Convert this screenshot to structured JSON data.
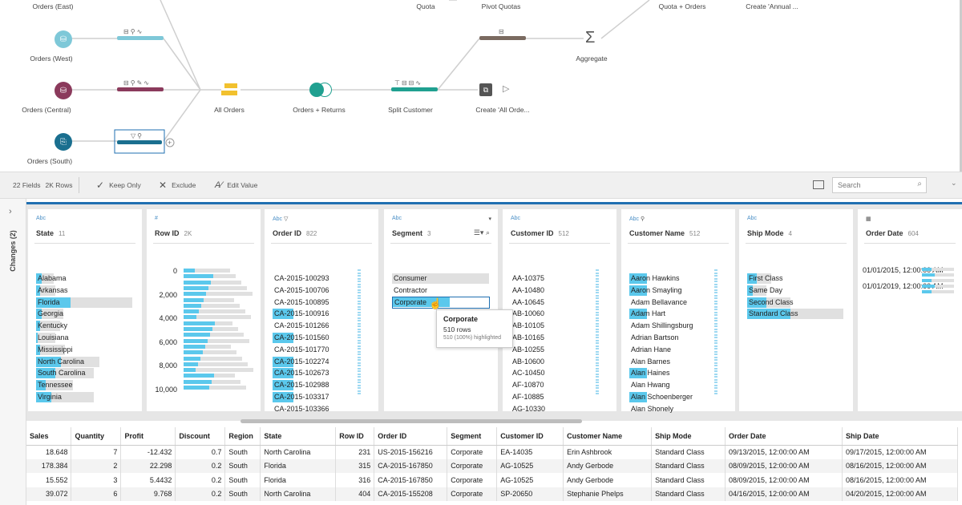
{
  "flow": {
    "nodes": [
      {
        "label": "Orders (East)"
      },
      {
        "label": "Orders (West)"
      },
      {
        "label": "Orders (Central)"
      },
      {
        "label": "Orders (South)"
      },
      {
        "label": "All Orders"
      },
      {
        "label": "Orders + Returns"
      },
      {
        "label": "Split Customer"
      },
      {
        "label": "Create 'All Orde..."
      },
      {
        "label": "Quota"
      },
      {
        "label": "Pivot Quotas"
      },
      {
        "label": "Aggregate"
      },
      {
        "label": "Quota + Orders"
      },
      {
        "label": "Create 'Annual ..."
      }
    ],
    "aggregate_symbol": "Σ"
  },
  "toolbar": {
    "fields": "22 Fields",
    "rows": "2K Rows",
    "keep_only": "Keep Only",
    "exclude": "Exclude",
    "edit_value": "Edit Value",
    "search_placeholder": "Search"
  },
  "left_rail": {
    "changes": "Changes (2)"
  },
  "profile": {
    "cards": [
      {
        "type": "Abc",
        "name": "State",
        "count": "11",
        "values": [
          "Alabama",
          "Arkansas",
          "Florida",
          "Georgia",
          "Kentucky",
          "Louisiana",
          "Mississippi",
          "North Carolina",
          "South Carolina",
          "Tennessee",
          "Virginia"
        ],
        "bg": [
          0.18,
          0.2,
          1.0,
          0.28,
          0.25,
          0.2,
          0.3,
          0.66,
          0.6,
          0.38,
          0.6
        ],
        "hl": [
          0.06,
          0.04,
          0.36,
          0.06,
          0.04,
          0.02,
          0.04,
          0.26,
          0.2,
          0.1,
          0.16
        ]
      },
      {
        "type": "#",
        "name": "Row ID",
        "count": "2K",
        "ticks": [
          "0",
          "2,000",
          "4,000",
          "6,000",
          "8,000",
          "10,000"
        ]
      },
      {
        "type": "Abc",
        "name": "Order ID",
        "count": "822",
        "values": [
          "CA-2015-100293",
          "CA-2015-100706",
          "CA-2015-100895",
          "CA-2015-100916",
          "CA-2015-101266",
          "CA-2015-101560",
          "CA-2015-101770",
          "CA-2015-102274",
          "CA-2015-102673",
          "CA-2015-102988",
          "CA-2015-103317",
          "CA-2015-103366"
        ],
        "hl": [
          0,
          0,
          0,
          1,
          0,
          1,
          0,
          1,
          1,
          1,
          1,
          0
        ]
      },
      {
        "type": "Abc",
        "name": "Segment",
        "count": "3",
        "values": [
          "Consumer",
          "Contractor",
          "Corporate"
        ]
      },
      {
        "type": "Abc",
        "name": "Customer ID",
        "count": "512",
        "values": [
          "AA-10375",
          "AA-10480",
          "AA-10645",
          "AB-10060",
          "AB-10105",
          "AB-10165",
          "AB-10255",
          "AB-10600",
          "AC-10450",
          "AF-10870",
          "AF-10885",
          "AG-10330"
        ]
      },
      {
        "type": "Abc",
        "name": "Customer Name",
        "count": "512",
        "values": [
          "Aaron Hawkins",
          "Aaron Smayling",
          "Adam Bellavance",
          "Adam Hart",
          "Adam Shillingsburg",
          "Adrian Bartson",
          "Adrian Hane",
          "Alan Barnes",
          "Alan Haines",
          "Alan Hwang",
          "Alan Schoenberger",
          "Alan Shonely"
        ],
        "hl": [
          1,
          1,
          0,
          1,
          0,
          0,
          0,
          0,
          1,
          0,
          1,
          0
        ]
      },
      {
        "type": "Abc",
        "name": "Ship Mode",
        "count": "4",
        "values": [
          "First Class",
          "Same Day",
          "Second Class",
          "Standard Class"
        ],
        "bg": [
          0.25,
          0.2,
          0.45,
          1.0
        ],
        "hl": [
          0.1,
          0.06,
          0.2,
          0.45
        ]
      },
      {
        "type": "date",
        "name": "Order Date",
        "count": "604",
        "values": [
          "01/01/2015, 12:00:00 AM",
          "01/01/2019, 12:00:00 AM"
        ]
      }
    ],
    "tooltip": {
      "title": "Corporate",
      "rows": "510 rows",
      "highlighted": "510 (100%) highlighted"
    }
  },
  "grid": {
    "columns": [
      "Sales",
      "Quantity",
      "Profit",
      "Discount",
      "Region",
      "State",
      "Row ID",
      "Order ID",
      "Segment",
      "Customer ID",
      "Customer Name",
      "Ship Mode",
      "Order Date",
      "Ship Date"
    ],
    "rows": [
      [
        "18.648",
        "7",
        "-12.432",
        "0.7",
        "South",
        "North Carolina",
        "231",
        "US-2015-156216",
        "Corporate",
        "EA-14035",
        "Erin Ashbrook",
        "Standard Class",
        "09/13/2015, 12:00:00 AM",
        "09/17/2015, 12:00:00 AM"
      ],
      [
        "178.384",
        "2",
        "22.298",
        "0.2",
        "South",
        "Florida",
        "315",
        "CA-2015-167850",
        "Corporate",
        "AG-10525",
        "Andy Gerbode",
        "Standard Class",
        "08/09/2015, 12:00:00 AM",
        "08/16/2015, 12:00:00 AM"
      ],
      [
        "15.552",
        "3",
        "5.4432",
        "0.2",
        "South",
        "Florida",
        "316",
        "CA-2015-167850",
        "Corporate",
        "AG-10525",
        "Andy Gerbode",
        "Standard Class",
        "08/09/2015, 12:00:00 AM",
        "08/16/2015, 12:00:00 AM"
      ],
      [
        "39.072",
        "6",
        "9.768",
        "0.2",
        "South",
        "North Carolina",
        "404",
        "CA-2015-155208",
        "Corporate",
        "SP-20650",
        "Stephanie Phelps",
        "Standard Class",
        "04/16/2015, 12:00:00 AM",
        "04/20/2015, 12:00:00 AM"
      ]
    ]
  },
  "colors": {
    "accent": "#1f6fb1",
    "highlight": "#5bc8ec",
    "west": "#7ec8d8",
    "central": "#8b3a5c",
    "south": "#1a6f8f",
    "union": "#f2c12e",
    "returns": "#20a090",
    "quota": "#7a6a60"
  }
}
